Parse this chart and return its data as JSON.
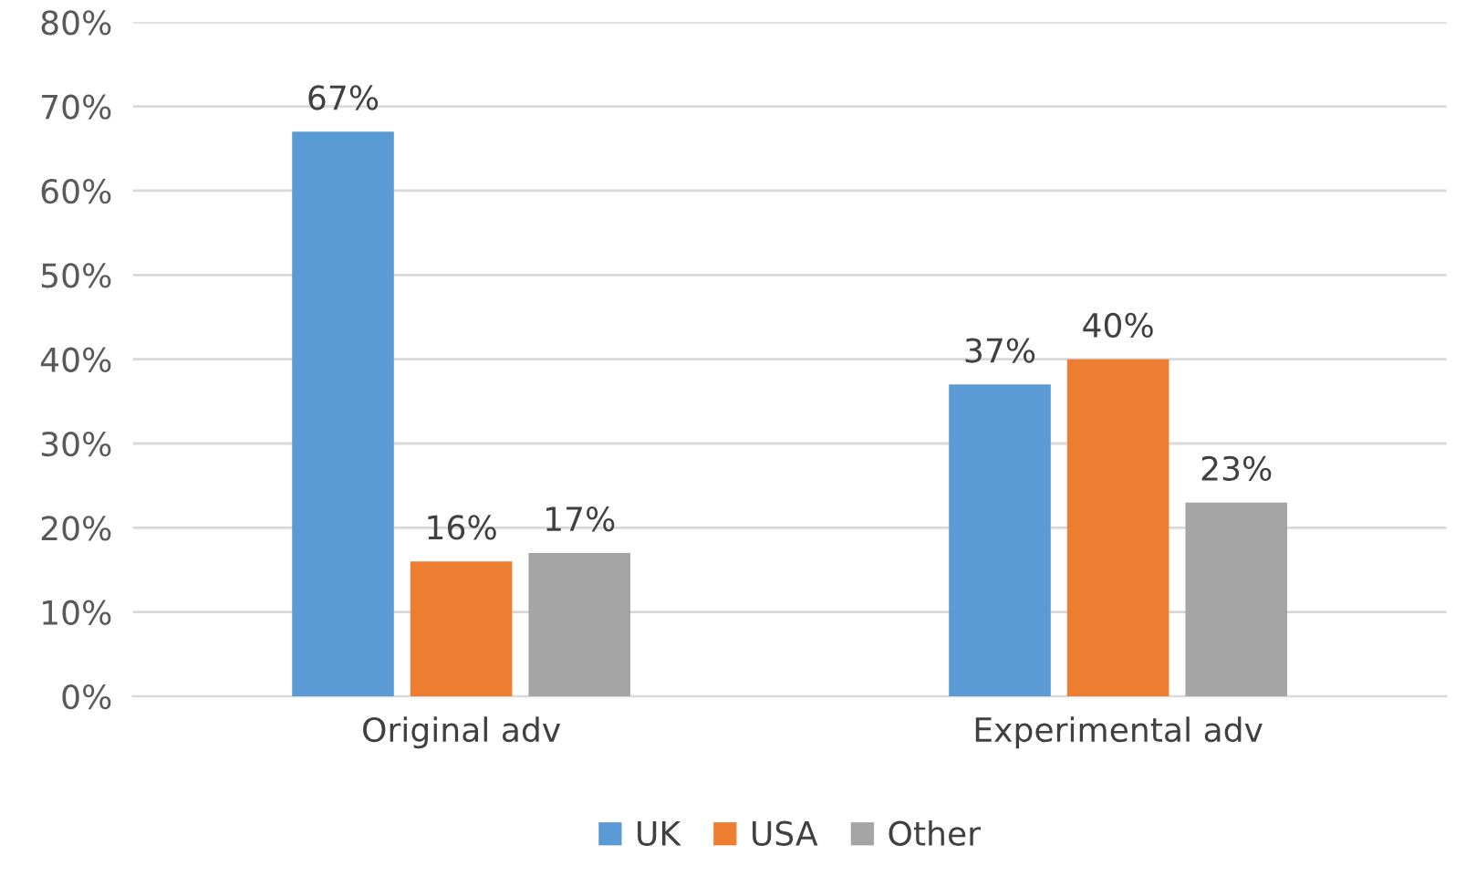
{
  "chart_data": {
    "type": "bar",
    "categories": [
      "Original adv",
      "Experimental adv"
    ],
    "series": [
      {
        "name": "UK",
        "color": "#5b9bd5",
        "values": [
          67,
          37
        ],
        "value_labels": [
          "67%",
          "37%"
        ]
      },
      {
        "name": "USA",
        "color": "#ed7d31",
        "values": [
          16,
          40
        ],
        "value_labels": [
          "16%",
          "40%"
        ]
      },
      {
        "name": "Other",
        "color": "#a5a5a5",
        "values": [
          17,
          23
        ],
        "value_labels": [
          "17%",
          "23%"
        ]
      }
    ],
    "ylim": [
      0,
      80
    ],
    "yticks": [
      {
        "value": 0,
        "label": "0%"
      },
      {
        "value": 10,
        "label": "10%"
      },
      {
        "value": 20,
        "label": "20%"
      },
      {
        "value": 30,
        "label": "30%"
      },
      {
        "value": 40,
        "label": "40%"
      },
      {
        "value": 50,
        "label": "50%"
      },
      {
        "value": 60,
        "label": "60%"
      },
      {
        "value": 70,
        "label": "70%"
      },
      {
        "value": 80,
        "label": "80%"
      }
    ],
    "grid": "y",
    "legend": "bottom"
  }
}
